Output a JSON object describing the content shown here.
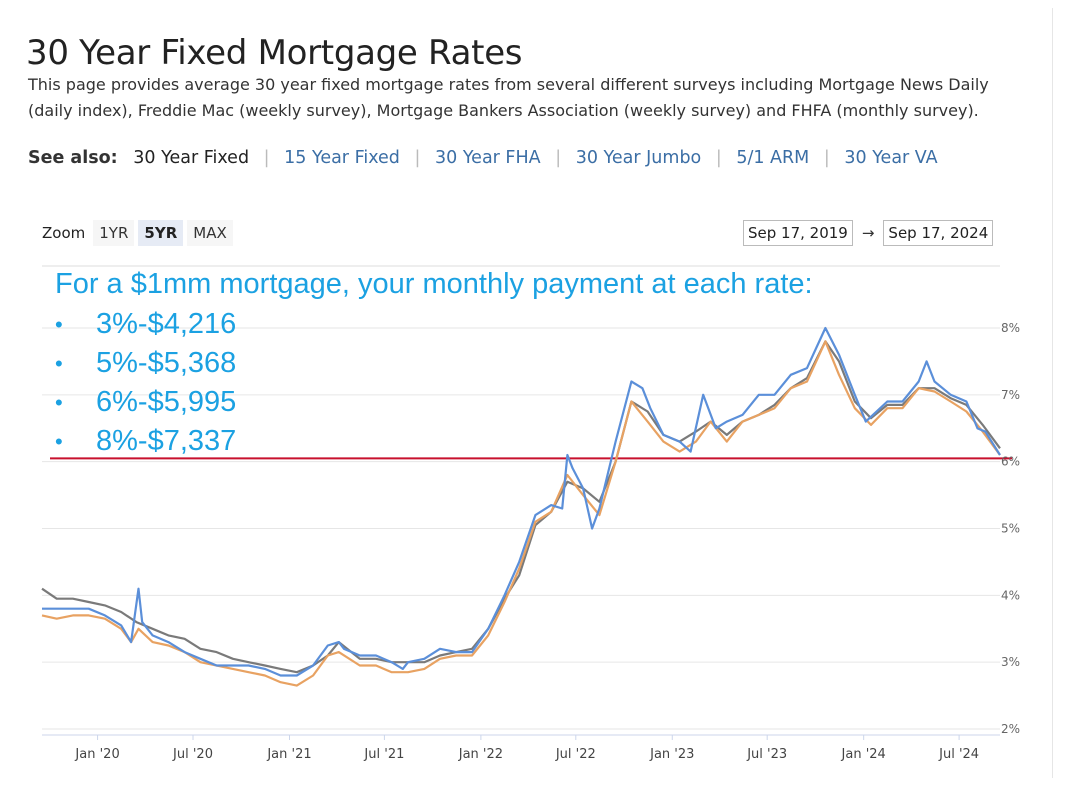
{
  "page": {
    "title": "30 Year Fixed Mortgage Rates",
    "intro": "This page provides average 30 year fixed mortgage rates from several different surveys including Mortgage News Daily (daily index), Freddie Mac (weekly survey), Mortgage Bankers Association (weekly survey) and FHFA (monthly survey).",
    "see_also": {
      "label": "See also:",
      "current": "30 Year Fixed",
      "links": [
        "15 Year Fixed",
        "30 Year FHA",
        "30 Year Jumbo",
        "5/1 ARM",
        "30 Year VA"
      ]
    }
  },
  "controls": {
    "zoom_label": "Zoom",
    "zoom_options": [
      "1YR",
      "5YR",
      "MAX"
    ],
    "zoom_selected": "5YR",
    "date_from": "Sep 17, 2019",
    "date_arrow": "→",
    "date_to": "Sep 17, 2024"
  },
  "annotation": {
    "headline": "For a $1mm mortgage, your monthly payment at each rate:",
    "bullet": "•",
    "items": [
      "3%-$4,216",
      "5%-$5,368",
      "6%-$5,995",
      "8%-$7,337"
    ],
    "color": "#1ba1e2"
  },
  "chart_data": {
    "type": "line",
    "x_ticks": [
      "Jan '20",
      "Jul '20",
      "Jan '21",
      "Jul '21",
      "Jan '22",
      "Jul '22",
      "Jan '23",
      "Jul '23",
      "Jan '24",
      "Jul '24"
    ],
    "y_ticks": [
      "2%",
      "3%",
      "4%",
      "5%",
      "6%",
      "7%",
      "8%"
    ],
    "ylim": [
      2,
      8
    ],
    "xlim": [
      "2019-09-17",
      "2024-09-17"
    ],
    "grid": true,
    "reference_line": {
      "value": 6.05,
      "color": "#c8102e"
    },
    "series": [
      {
        "color": "#5b8fd9",
        "points": [
          [
            "2019-09-17",
            3.8
          ],
          [
            "2019-10-15",
            3.8
          ],
          [
            "2019-11-15",
            3.8
          ],
          [
            "2019-12-15",
            3.8
          ],
          [
            "2020-01-15",
            3.7
          ],
          [
            "2020-02-15",
            3.55
          ],
          [
            "2020-03-05",
            3.3
          ],
          [
            "2020-03-12",
            3.7
          ],
          [
            "2020-03-19",
            4.1
          ],
          [
            "2020-03-26",
            3.6
          ],
          [
            "2020-04-15",
            3.4
          ],
          [
            "2020-05-15",
            3.3
          ],
          [
            "2020-06-15",
            3.15
          ],
          [
            "2020-07-15",
            3.05
          ],
          [
            "2020-08-15",
            2.95
          ],
          [
            "2020-09-15",
            2.95
          ],
          [
            "2020-10-15",
            2.95
          ],
          [
            "2020-11-15",
            2.9
          ],
          [
            "2020-12-15",
            2.8
          ],
          [
            "2021-01-15",
            2.8
          ],
          [
            "2021-02-15",
            2.95
          ],
          [
            "2021-03-15",
            3.25
          ],
          [
            "2021-04-05",
            3.3
          ],
          [
            "2021-04-15",
            3.2
          ],
          [
            "2021-05-15",
            3.1
          ],
          [
            "2021-06-15",
            3.1
          ],
          [
            "2021-07-15",
            3.0
          ],
          [
            "2021-08-05",
            2.9
          ],
          [
            "2021-08-15",
            3.0
          ],
          [
            "2021-09-15",
            3.05
          ],
          [
            "2021-10-15",
            3.2
          ],
          [
            "2021-11-15",
            3.15
          ],
          [
            "2021-12-15",
            3.15
          ],
          [
            "2022-01-15",
            3.5
          ],
          [
            "2022-02-15",
            4.0
          ],
          [
            "2022-03-15",
            4.5
          ],
          [
            "2022-04-15",
            5.2
          ],
          [
            "2022-05-15",
            5.35
          ],
          [
            "2022-06-05",
            5.3
          ],
          [
            "2022-06-15",
            6.1
          ],
          [
            "2022-06-25",
            5.9
          ],
          [
            "2022-07-15",
            5.6
          ],
          [
            "2022-08-01",
            5.0
          ],
          [
            "2022-08-15",
            5.3
          ],
          [
            "2022-09-15",
            6.3
          ],
          [
            "2022-10-15",
            7.2
          ],
          [
            "2022-11-05",
            7.1
          ],
          [
            "2022-11-20",
            6.8
          ],
          [
            "2022-12-15",
            6.4
          ],
          [
            "2023-01-15",
            6.3
          ],
          [
            "2023-02-05",
            6.15
          ],
          [
            "2023-03-01",
            7.0
          ],
          [
            "2023-03-25",
            6.5
          ],
          [
            "2023-04-15",
            6.6
          ],
          [
            "2023-05-15",
            6.7
          ],
          [
            "2023-06-15",
            7.0
          ],
          [
            "2023-07-15",
            7.0
          ],
          [
            "2023-08-15",
            7.3
          ],
          [
            "2023-09-15",
            7.4
          ],
          [
            "2023-10-20",
            8.0
          ],
          [
            "2023-11-15",
            7.6
          ],
          [
            "2023-12-15",
            7.0
          ],
          [
            "2024-01-05",
            6.6
          ],
          [
            "2024-02-15",
            6.9
          ],
          [
            "2024-03-15",
            6.9
          ],
          [
            "2024-04-15",
            7.2
          ],
          [
            "2024-04-30",
            7.5
          ],
          [
            "2024-05-15",
            7.2
          ],
          [
            "2024-06-15",
            7.0
          ],
          [
            "2024-07-15",
            6.9
          ],
          [
            "2024-08-05",
            6.5
          ],
          [
            "2024-08-20",
            6.45
          ],
          [
            "2024-09-17",
            6.1
          ]
        ]
      },
      {
        "color": "#e8a262",
        "points": [
          [
            "2019-09-17",
            3.7
          ],
          [
            "2019-10-15",
            3.65
          ],
          [
            "2019-11-15",
            3.7
          ],
          [
            "2019-12-15",
            3.7
          ],
          [
            "2020-01-15",
            3.65
          ],
          [
            "2020-02-15",
            3.5
          ],
          [
            "2020-03-05",
            3.3
          ],
          [
            "2020-03-19",
            3.5
          ],
          [
            "2020-04-15",
            3.3
          ],
          [
            "2020-05-15",
            3.25
          ],
          [
            "2020-06-15",
            3.15
          ],
          [
            "2020-07-15",
            3.0
          ],
          [
            "2020-08-15",
            2.95
          ],
          [
            "2020-09-15",
            2.9
          ],
          [
            "2020-10-15",
            2.85
          ],
          [
            "2020-11-15",
            2.8
          ],
          [
            "2020-12-15",
            2.7
          ],
          [
            "2021-01-15",
            2.65
          ],
          [
            "2021-02-15",
            2.8
          ],
          [
            "2021-03-15",
            3.1
          ],
          [
            "2021-04-05",
            3.15
          ],
          [
            "2021-05-15",
            2.95
          ],
          [
            "2021-06-15",
            2.95
          ],
          [
            "2021-07-15",
            2.85
          ],
          [
            "2021-08-15",
            2.85
          ],
          [
            "2021-09-15",
            2.9
          ],
          [
            "2021-10-15",
            3.05
          ],
          [
            "2021-11-15",
            3.1
          ],
          [
            "2021-12-15",
            3.1
          ],
          [
            "2022-01-15",
            3.4
          ],
          [
            "2022-02-15",
            3.9
          ],
          [
            "2022-03-15",
            4.4
          ],
          [
            "2022-04-15",
            5.1
          ],
          [
            "2022-05-15",
            5.25
          ],
          [
            "2022-06-15",
            5.8
          ],
          [
            "2022-07-15",
            5.5
          ],
          [
            "2022-08-15",
            5.2
          ],
          [
            "2022-09-15",
            6.0
          ],
          [
            "2022-10-15",
            6.9
          ],
          [
            "2022-11-15",
            6.6
          ],
          [
            "2022-12-15",
            6.3
          ],
          [
            "2023-01-15",
            6.15
          ],
          [
            "2023-02-15",
            6.3
          ],
          [
            "2023-03-15",
            6.6
          ],
          [
            "2023-04-15",
            6.3
          ],
          [
            "2023-05-15",
            6.6
          ],
          [
            "2023-06-15",
            6.7
          ],
          [
            "2023-07-15",
            6.8
          ],
          [
            "2023-08-15",
            7.1
          ],
          [
            "2023-09-15",
            7.2
          ],
          [
            "2023-10-20",
            7.8
          ],
          [
            "2023-11-15",
            7.3
          ],
          [
            "2023-12-15",
            6.8
          ],
          [
            "2024-01-15",
            6.55
          ],
          [
            "2024-02-15",
            6.8
          ],
          [
            "2024-03-15",
            6.8
          ],
          [
            "2024-04-15",
            7.1
          ],
          [
            "2024-05-15",
            7.05
          ],
          [
            "2024-06-15",
            6.9
          ],
          [
            "2024-07-15",
            6.75
          ],
          [
            "2024-08-15",
            6.45
          ],
          [
            "2024-09-17",
            6.1
          ]
        ]
      },
      {
        "color": "#7a7a7a",
        "points": [
          [
            "2019-09-17",
            4.1
          ],
          [
            "2019-10-15",
            3.95
          ],
          [
            "2019-11-15",
            3.95
          ],
          [
            "2019-12-15",
            3.9
          ],
          [
            "2020-01-15",
            3.85
          ],
          [
            "2020-02-15",
            3.75
          ],
          [
            "2020-03-15",
            3.6
          ],
          [
            "2020-04-15",
            3.5
          ],
          [
            "2020-05-15",
            3.4
          ],
          [
            "2020-06-15",
            3.35
          ],
          [
            "2020-07-15",
            3.2
          ],
          [
            "2020-08-15",
            3.15
          ],
          [
            "2020-09-15",
            3.05
          ],
          [
            "2020-10-15",
            3.0
          ],
          [
            "2020-11-15",
            2.95
          ],
          [
            "2020-12-15",
            2.9
          ],
          [
            "2021-01-15",
            2.85
          ],
          [
            "2021-02-15",
            2.95
          ],
          [
            "2021-03-15",
            3.1
          ],
          [
            "2021-04-05",
            3.3
          ],
          [
            "2021-05-15",
            3.05
          ],
          [
            "2021-06-15",
            3.05
          ],
          [
            "2021-07-15",
            3.0
          ],
          [
            "2021-08-15",
            3.0
          ],
          [
            "2021-09-15",
            3.0
          ],
          [
            "2021-10-15",
            3.1
          ],
          [
            "2021-11-15",
            3.15
          ],
          [
            "2021-12-15",
            3.2
          ],
          [
            "2022-01-15",
            3.5
          ],
          [
            "2022-02-15",
            3.95
          ],
          [
            "2022-03-15",
            4.3
          ],
          [
            "2022-04-15",
            5.05
          ],
          [
            "2022-05-15",
            5.25
          ],
          [
            "2022-06-15",
            5.7
          ],
          [
            "2022-07-15",
            5.6
          ],
          [
            "2022-08-15",
            5.4
          ],
          [
            "2022-09-15",
            6.0
          ],
          [
            "2022-10-15",
            6.9
          ],
          [
            "2022-11-15",
            6.75
          ],
          [
            "2022-12-15",
            6.4
          ],
          [
            "2023-01-15",
            6.3
          ],
          [
            "2023-02-15",
            6.45
          ],
          [
            "2023-03-15",
            6.6
          ],
          [
            "2023-04-15",
            6.4
          ],
          [
            "2023-05-15",
            6.6
          ],
          [
            "2023-06-15",
            6.7
          ],
          [
            "2023-07-15",
            6.85
          ],
          [
            "2023-08-15",
            7.1
          ],
          [
            "2023-09-15",
            7.25
          ],
          [
            "2023-10-20",
            7.8
          ],
          [
            "2023-11-15",
            7.5
          ],
          [
            "2023-12-15",
            6.9
          ],
          [
            "2024-01-15",
            6.65
          ],
          [
            "2024-02-15",
            6.85
          ],
          [
            "2024-03-15",
            6.85
          ],
          [
            "2024-04-15",
            7.1
          ],
          [
            "2024-05-15",
            7.1
          ],
          [
            "2024-06-15",
            6.95
          ],
          [
            "2024-07-15",
            6.85
          ],
          [
            "2024-08-15",
            6.55
          ],
          [
            "2024-09-17",
            6.2
          ]
        ]
      }
    ]
  }
}
